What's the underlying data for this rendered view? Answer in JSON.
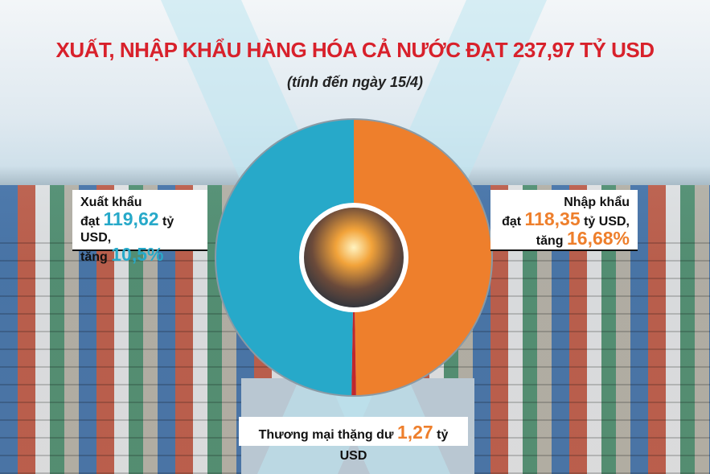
{
  "title": "XUẤT, NHẬP KHẨU HÀNG HÓA CẢ NƯỚC ĐẠT 237,97 TỶ USD",
  "subtitle": "(tính đến ngày 15/4)",
  "export": {
    "label": "Xuất khẩu",
    "prefix": "đạt",
    "value": "119,62",
    "unit": "tỷ USD,",
    "growth_prefix": "tăng",
    "growth": "10,5%"
  },
  "import": {
    "label": "Nhập khẩu",
    "prefix": "đạt",
    "value": "118,35",
    "unit": "tỷ USD,",
    "growth_prefix": "tăng",
    "growth": "16,68%"
  },
  "surplus": {
    "label": "Thương mại thặng dư",
    "value": "1,27",
    "unit": "tỷ USD"
  },
  "chart_data": {
    "type": "pie",
    "donut": true,
    "total": 237.97,
    "slices": [
      {
        "name": "Nhập khẩu",
        "value": 118.35,
        "color": "#ee7f2c"
      },
      {
        "name": "Thương mại thặng dư",
        "value": 1.27,
        "color": "#c0272d"
      },
      {
        "name": "Xuất khẩu",
        "value": 118.35,
        "color": "#27a9c9"
      }
    ]
  }
}
